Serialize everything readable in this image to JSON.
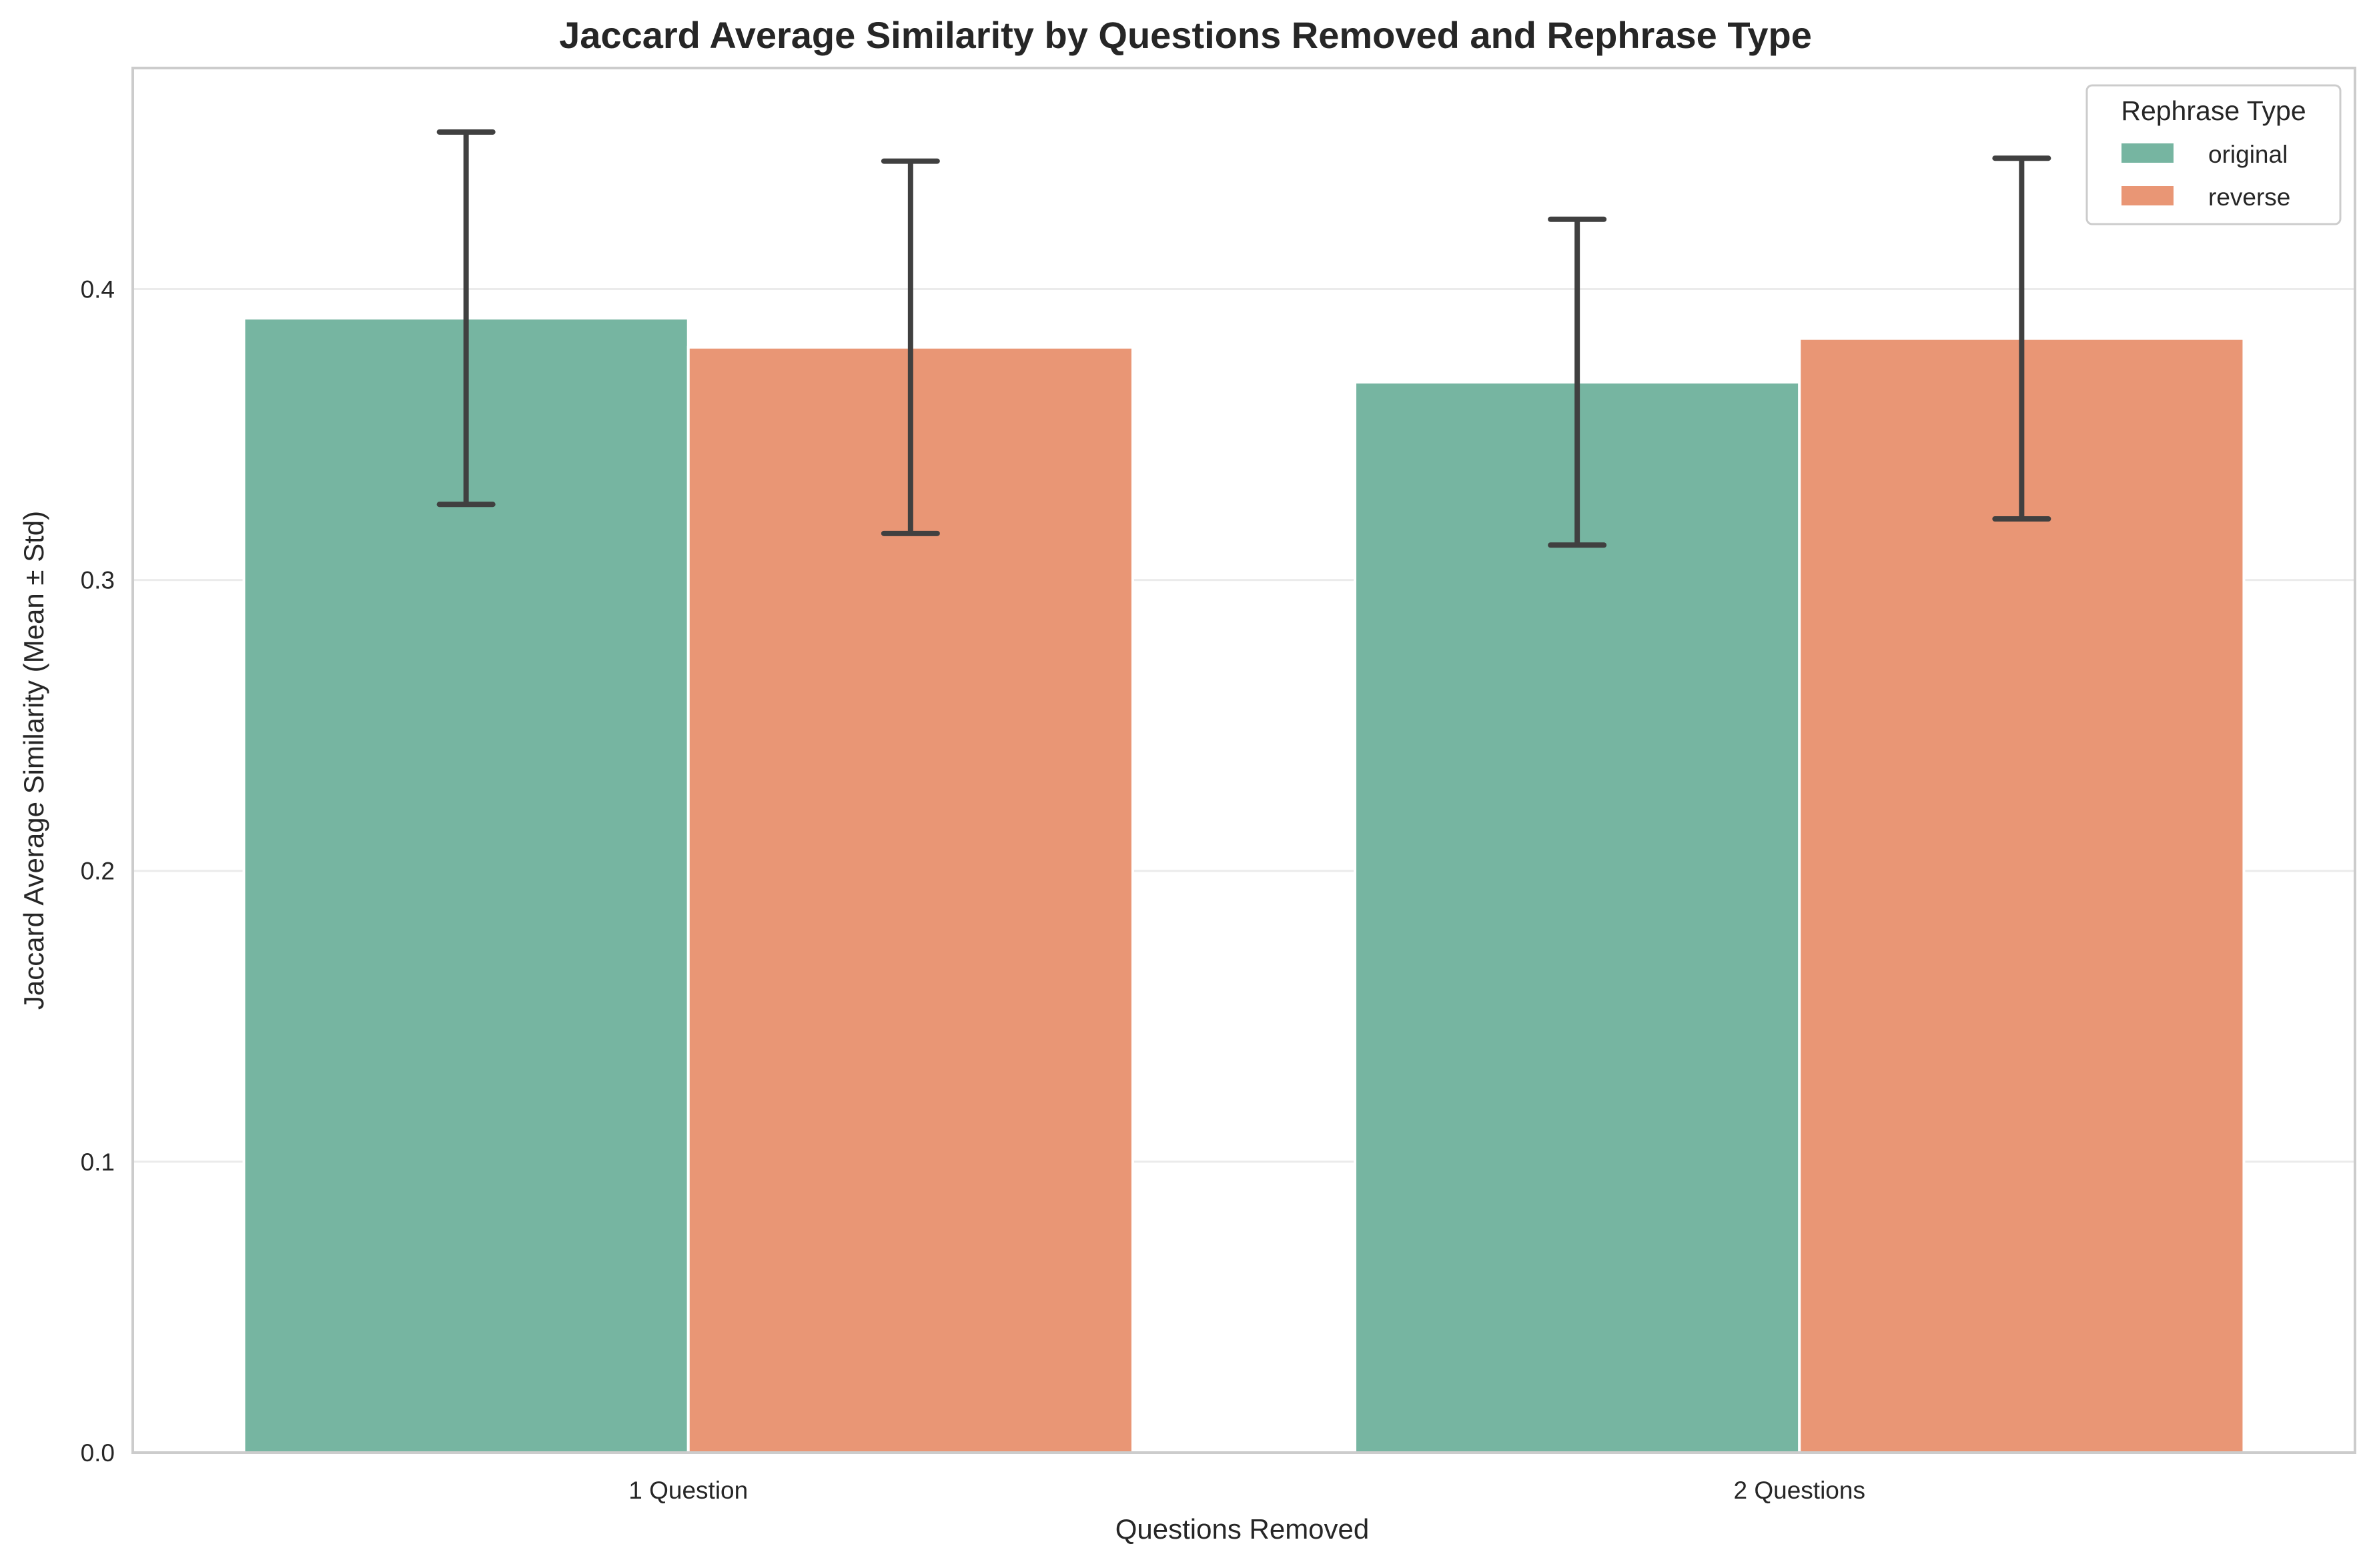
{
  "chart_data": {
    "type": "bar",
    "title": "Jaccard Average Similarity by Questions Removed and Rephrase Type",
    "xlabel": "Questions Removed",
    "ylabel": "Jaccard Average Similarity (Mean ± Std)",
    "categories": [
      "1 Question",
      "2 Questions"
    ],
    "ylim": [
      0,
      0.476
    ],
    "yticks": [
      0.0,
      0.1,
      0.2,
      0.3,
      0.4
    ],
    "ytick_labels": [
      "0.0",
      "0.1",
      "0.2",
      "0.3",
      "0.4"
    ],
    "grid": "horizontal",
    "legend": {
      "title": "Rephrase Type",
      "placement": "top-right"
    },
    "series": [
      {
        "name": "original",
        "color": "#76b5a1",
        "values": [
          0.39,
          0.368
        ],
        "std": [
          0.064,
          0.056
        ]
      },
      {
        "name": "reverse",
        "color": "#e99675",
        "values": [
          0.38,
          0.383
        ],
        "std": [
          0.064,
          0.062
        ]
      }
    ],
    "errorbar_color": "#404040"
  }
}
